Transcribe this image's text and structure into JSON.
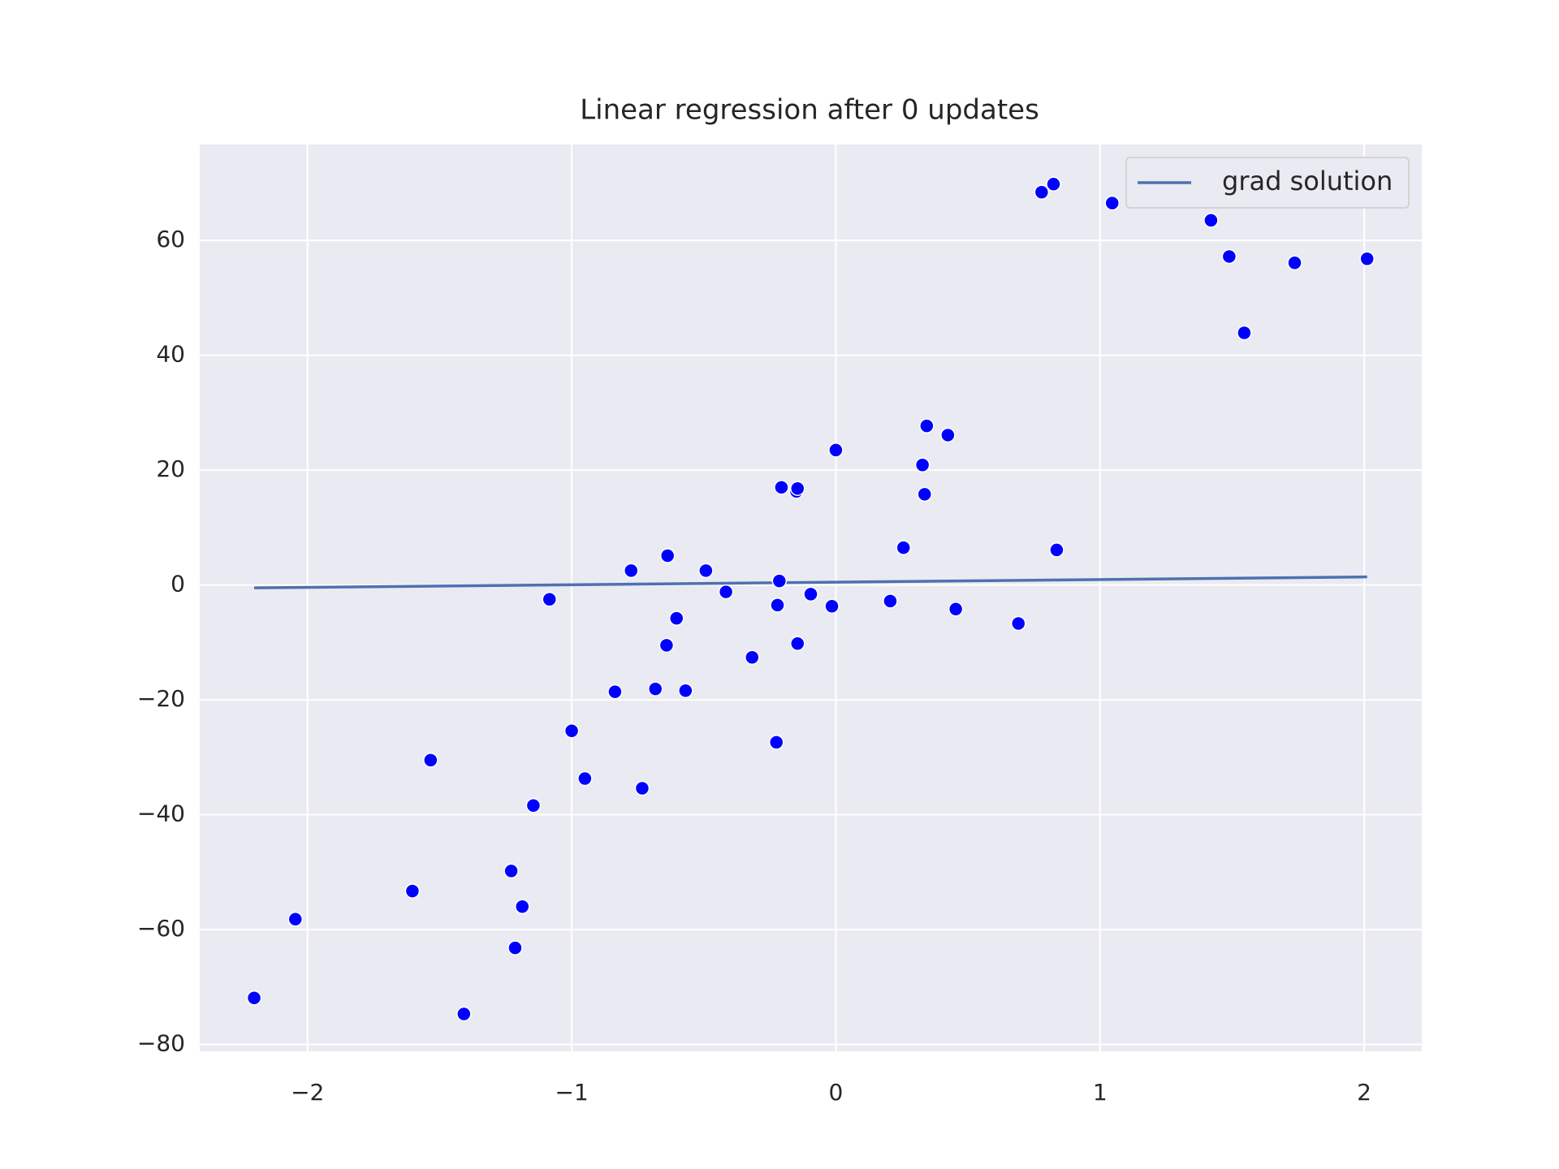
{
  "chart_data": {
    "type": "scatter",
    "title": "Linear regression after 0 updates",
    "xlim": [
      -2.408,
      2.218
    ],
    "ylim": [
      -81.2,
      76.7
    ],
    "xticks": [
      {
        "value": -2,
        "label": "−2"
      },
      {
        "value": -1,
        "label": "−1"
      },
      0,
      1,
      2
    ],
    "yticks": [
      {
        "value": -80,
        "label": "−80"
      },
      {
        "value": -60,
        "label": "−60"
      },
      {
        "value": -40,
        "label": "−40"
      },
      {
        "value": -20,
        "label": "−20"
      },
      0,
      20,
      40,
      60
    ],
    "grid": true,
    "background": "#eaeaf2",
    "legend": "upper right",
    "series": [
      {
        "name": "grad solution",
        "type": "line",
        "color": "#4c72b0",
        "x": [
          -2.202,
          2.011
        ],
        "values": [
          -0.5,
          1.4
        ]
      },
      {
        "type": "scatter",
        "color": "#0000ff",
        "x": [
          -2.202,
          -2.046,
          -1.603,
          -1.534,
          -1.408,
          -1.229,
          -1.214,
          -1.187,
          -1.145,
          -1.084,
          -1.0,
          -0.95,
          -0.836,
          -0.775,
          -0.733,
          -0.683,
          -0.641,
          -0.637,
          -0.603,
          -0.569,
          -0.492,
          -0.416,
          -0.317,
          -0.225,
          -0.221,
          -0.214,
          -0.206,
          -0.149,
          -0.145,
          -0.145,
          -0.095,
          -0.015,
          0.0,
          0.206,
          0.256,
          0.328,
          0.336,
          0.344,
          0.424,
          0.454,
          0.691,
          0.779,
          0.824,
          0.836,
          1.046,
          1.42,
          1.489,
          1.546,
          1.737,
          2.011
        ],
        "values": [
          -71.9,
          -58.2,
          -53.3,
          -30.5,
          -74.7,
          -49.8,
          -63.2,
          -56.0,
          -38.4,
          -2.5,
          -25.4,
          -33.7,
          -18.6,
          2.5,
          -35.4,
          -18.1,
          -10.5,
          5.1,
          -5.8,
          -18.4,
          2.5,
          -1.2,
          -12.6,
          -27.4,
          -3.5,
          0.7,
          17.0,
          16.3,
          16.8,
          -10.2,
          -1.6,
          -3.7,
          23.5,
          -2.8,
          6.5,
          20.9,
          15.8,
          27.7,
          26.1,
          -4.2,
          -6.7,
          68.4,
          69.8,
          6.1,
          66.5,
          63.5,
          57.2,
          43.9,
          56.1,
          56.8
        ]
      }
    ]
  }
}
